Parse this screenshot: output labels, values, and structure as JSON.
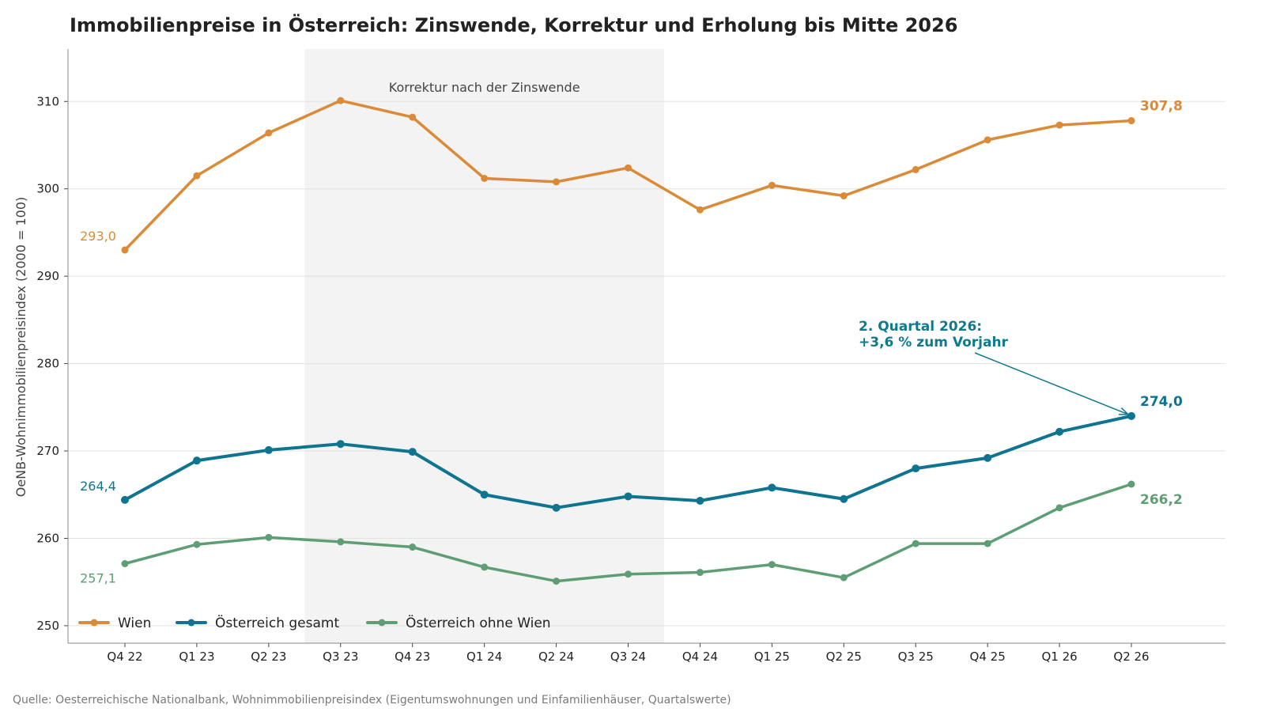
{
  "chart_data": {
    "type": "line",
    "title": "Immobilienpreise in Österreich: Zinswende, Korrektur und Erholung bis Mitte 2026",
    "ylabel": "OeNB-Wohnimmobilienpreisindex (2000 = 100)",
    "xlabel": "",
    "source": "Quelle: Oesterreichische Nationalbank, Wohnimmobilienpreisindex (Eigentumswohnungen und Einfamilienhäuser, Quartalswerte)",
    "categories": [
      "Q4 22",
      "Q1 23",
      "Q2 23",
      "Q3 23",
      "Q4 23",
      "Q1 24",
      "Q2 24",
      "Q3 24",
      "Q4 24",
      "Q1 25",
      "Q2 25",
      "Q3 25",
      "Q4 25",
      "Q1 26",
      "Q2 26"
    ],
    "ylim": [
      248,
      316
    ],
    "yticks": [
      250,
      260,
      270,
      280,
      290,
      300,
      310
    ],
    "grid": "horizontal",
    "legend_position": "bottom-left",
    "shaded_region": {
      "from": "Q3 23",
      "to": "Q3 24",
      "label": "Korrektur nach der Zinswende",
      "color": "#f3f3f3"
    },
    "annotation": {
      "lines": [
        "2. Quartal 2026:",
        "+3,6 % zum Vorjahr"
      ],
      "target_series": "Österreich gesamt",
      "target_category": "Q2 26",
      "color": "#0e7a8c"
    },
    "series": [
      {
        "name": "Wien",
        "color": "#db8a37",
        "values": [
          293.0,
          301.5,
          306.4,
          310.1,
          308.2,
          301.2,
          300.8,
          302.4,
          297.6,
          300.4,
          299.2,
          302.2,
          305.6,
          307.3,
          307.8
        ],
        "start_label": "293,0",
        "end_label": "307,8"
      },
      {
        "name": "Österreich gesamt",
        "color": "#0e7490",
        "values": [
          264.4,
          268.9,
          270.1,
          270.8,
          269.9,
          265.0,
          263.5,
          264.8,
          264.3,
          265.8,
          264.5,
          268.0,
          269.2,
          272.2,
          274.0
        ],
        "start_label": "264,4",
        "end_label": "274,0"
      },
      {
        "name": "Österreich ohne Wien",
        "color": "#5e9e74",
        "values": [
          257.1,
          259.3,
          260.1,
          259.6,
          259.0,
          256.7,
          255.1,
          255.9,
          256.1,
          257.0,
          255.5,
          259.4,
          259.4,
          263.5,
          266.2
        ],
        "start_label": "257,1",
        "end_label": "266,2"
      }
    ]
  }
}
